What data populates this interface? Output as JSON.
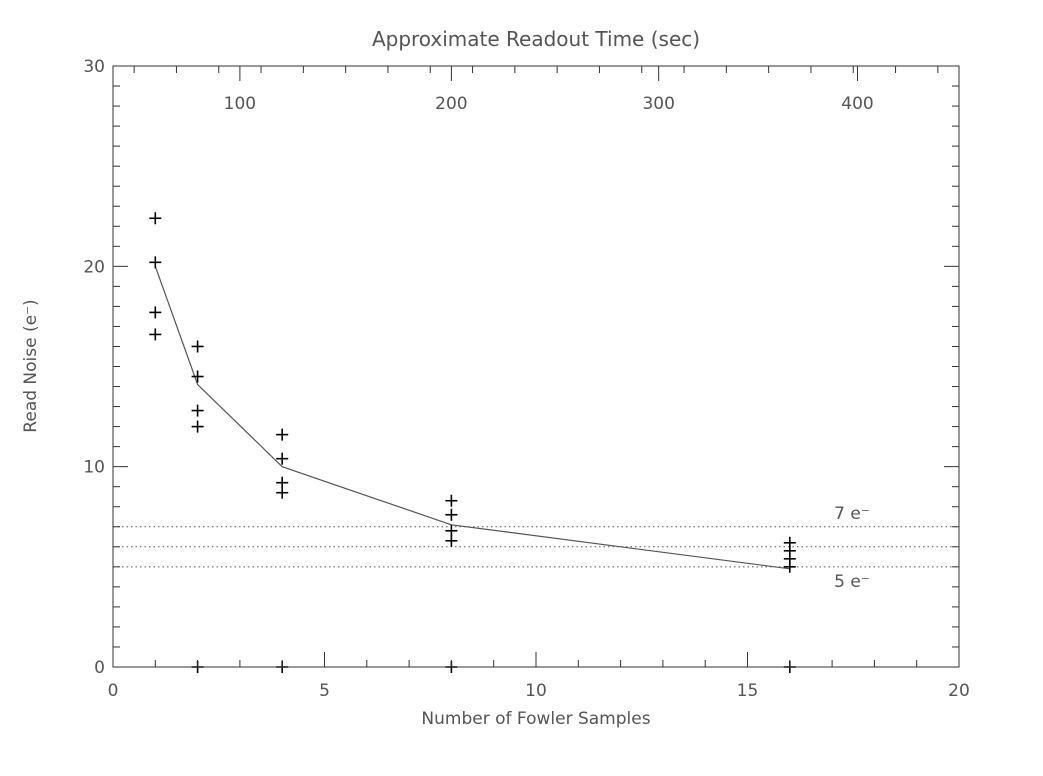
{
  "chart_data": {
    "type": "scatter",
    "title": "Approximate Readout Time (sec)",
    "xlabel": "Number of Fowler Samples",
    "ylabel": "Read Noise (e⁻)",
    "xlim": [
      0,
      20
    ],
    "ylim": [
      0,
      30
    ],
    "x_ticks": [
      0,
      5,
      10,
      15,
      20
    ],
    "y_ticks": [
      0,
      10,
      20,
      30
    ],
    "top_axis": {
      "label": "Approximate Readout Time (sec)",
      "ticks": [
        {
          "x": 3.0,
          "label": "100"
        },
        {
          "x": 8.0,
          "label": "200"
        },
        {
          "x": 12.9,
          "label": "300"
        },
        {
          "x": 17.6,
          "label": "400"
        }
      ]
    },
    "grid": false,
    "series": [
      {
        "marker": "plus",
        "points": [
          {
            "x": 1,
            "y": 22.4
          },
          {
            "x": 1,
            "y": 20.2
          },
          {
            "x": 1,
            "y": 17.7
          },
          {
            "x": 1,
            "y": 16.6
          },
          {
            "x": 2,
            "y": 16.0
          },
          {
            "x": 2,
            "y": 14.5
          },
          {
            "x": 2,
            "y": 12.8
          },
          {
            "x": 2,
            "y": 12.0
          },
          {
            "x": 4,
            "y": 11.6
          },
          {
            "x": 4,
            "y": 10.4
          },
          {
            "x": 4,
            "y": 9.2
          },
          {
            "x": 4,
            "y": 8.7
          },
          {
            "x": 8,
            "y": 8.3
          },
          {
            "x": 8,
            "y": 7.6
          },
          {
            "x": 8,
            "y": 6.8
          },
          {
            "x": 8,
            "y": 6.3
          },
          {
            "x": 16,
            "y": 6.2
          },
          {
            "x": 16,
            "y": 5.8
          },
          {
            "x": 16,
            "y": 5.4
          },
          {
            "x": 16,
            "y": 5.0
          },
          {
            "x": 2,
            "y": 0
          },
          {
            "x": 4,
            "y": 0
          },
          {
            "x": 8,
            "y": 0
          },
          {
            "x": 16,
            "y": 0
          }
        ]
      },
      {
        "line": "solid",
        "points": [
          {
            "x": 1,
            "y": 20.0
          },
          {
            "x": 2,
            "y": 14.1
          },
          {
            "x": 4,
            "y": 10.0
          },
          {
            "x": 8,
            "y": 7.1
          },
          {
            "x": 16,
            "y": 4.9
          }
        ]
      }
    ],
    "reference_lines": [
      {
        "y": 7,
        "style": "dotted",
        "label": "7 e⁻"
      },
      {
        "y": 6,
        "style": "dotted",
        "label": ""
      },
      {
        "y": 5,
        "style": "dotted",
        "label": "5 e⁻"
      }
    ]
  }
}
